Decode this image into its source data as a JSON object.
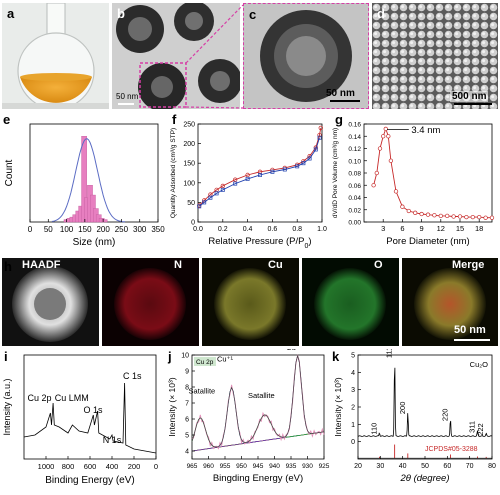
{
  "panels": {
    "a": {
      "label": "a"
    },
    "b": {
      "label": "b",
      "scale": "50 nm"
    },
    "c": {
      "label": "c",
      "scale": "50 nm"
    },
    "d": {
      "label": "d",
      "scale": "500 nm"
    },
    "e": {
      "label": "e"
    },
    "f": {
      "label": "f"
    },
    "g": {
      "label": "g"
    },
    "h": {
      "label": "h",
      "scale": "50 nm",
      "maps": [
        "HAADF",
        "N",
        "Cu",
        "O",
        "Merge"
      ]
    },
    "i": {
      "label": "i"
    },
    "j": {
      "label": "j"
    },
    "k": {
      "label": "k"
    }
  },
  "colors": {
    "accent_magenta": "#d63fa6",
    "bar_pink": "#e77fc0",
    "fit_blue": "#5b6cc4",
    "red_line": "#c62828",
    "blue_line": "#1e3fae",
    "map_N": "#b1121f",
    "map_Cu": "#c5c234",
    "map_O": "#2fa33a"
  },
  "chart_data": [
    {
      "id": "e",
      "type": "bar",
      "xlabel": "Size (nm)",
      "ylabel": "Count",
      "xlim": [
        0,
        350
      ],
      "xticks": [
        0,
        50,
        100,
        150,
        200,
        250,
        300,
        350
      ],
      "x": [
        100,
        108,
        116,
        124,
        132,
        140,
        148,
        156,
        164,
        172,
        180,
        188,
        196,
        204
      ],
      "values": [
        2,
        3,
        4,
        6,
        9,
        13,
        70,
        20,
        30,
        22,
        11,
        6,
        3,
        2
      ],
      "fit": {
        "type": "gaussian",
        "center": 155,
        "sigma": 30,
        "peak": 68
      }
    },
    {
      "id": "f",
      "type": "line",
      "xlabel": "Relative Pressure (P/P",
      "xlabel_sub": "0",
      "xlabel_end": ")",
      "ylabel": "Quantity Adsorbed (cm³/g STP)",
      "xlim": [
        0,
        1.0
      ],
      "xticks": [
        "0.0",
        "0.2",
        "0.4",
        "0.6",
        "0.8",
        "1.0"
      ],
      "ylim": [
        0,
        250
      ],
      "yticks": [
        0,
        50,
        100,
        150,
        200,
        250
      ],
      "series": [
        {
          "x": [
            0.01,
            0.05,
            0.1,
            0.15,
            0.2,
            0.3,
            0.4,
            0.5,
            0.6,
            0.7,
            0.8,
            0.85,
            0.9,
            0.95,
            0.98,
            0.99
          ],
          "values": [
            42,
            55,
            70,
            82,
            92,
            108,
            120,
            128,
            133,
            138,
            146,
            155,
            168,
            190,
            222,
            240
          ]
        },
        {
          "x": [
            0.01,
            0.05,
            0.1,
            0.15,
            0.2,
            0.3,
            0.4,
            0.5,
            0.6,
            0.7,
            0.8,
            0.85,
            0.9,
            0.95,
            0.98
          ],
          "values": [
            40,
            50,
            62,
            73,
            82,
            98,
            110,
            120,
            128,
            134,
            142,
            150,
            162,
            185,
            215
          ]
        }
      ]
    },
    {
      "id": "g",
      "type": "line",
      "xlabel": "Pore Diameter  (nm)",
      "ylabel": "dV/dD Pore Volume (cm³/g nm)",
      "xlim": [
        0,
        20
      ],
      "xticks": [
        3,
        6,
        9,
        12,
        15,
        18
      ],
      "ylim": [
        0,
        0.16
      ],
      "yticks": [
        "0.00",
        "0.02",
        "0.04",
        "0.06",
        "0.08",
        "0.10",
        "0.12",
        "0.14",
        "0.16"
      ],
      "annotation": "3.4 nm",
      "series": [
        {
          "x": [
            1.5,
            2,
            2.5,
            3,
            3.4,
            3.8,
            4.2,
            5,
            6,
            7,
            8,
            9,
            10,
            11,
            12,
            13,
            14,
            15,
            16,
            17,
            18,
            19,
            20
          ],
          "values": [
            0.06,
            0.08,
            0.12,
            0.14,
            0.152,
            0.14,
            0.1,
            0.05,
            0.025,
            0.018,
            0.015,
            0.013,
            0.012,
            0.011,
            0.01,
            0.01,
            0.009,
            0.009,
            0.008,
            0.008,
            0.008,
            0.007,
            0.007
          ]
        }
      ]
    },
    {
      "id": "i",
      "type": "line",
      "xlabel": "Binding Energy (eV)",
      "ylabel": "Intensity (a.u.)",
      "xlim": [
        1200,
        0
      ],
      "xticks": [
        1000,
        800,
        600,
        400,
        200,
        0
      ],
      "annotations": [
        "Cu 2p",
        "Cu LMM",
        "O 1s",
        "N 1s",
        "C 1s"
      ]
    },
    {
      "id": "j",
      "type": "line",
      "xlabel": "Bingding Energy (eV)",
      "ylabel": "Intensity (× 10³)",
      "ylabel_sup": "3",
      "legend": "Cu 2p",
      "xlim": [
        965,
        925
      ],
      "xticks": [
        965,
        960,
        955,
        950,
        945,
        940,
        935,
        930,
        925
      ],
      "ylim": [
        3.5,
        10
      ],
      "yticks": [
        4,
        5,
        6,
        7,
        8,
        9,
        10
      ],
      "annotations": [
        "Satallite",
        "Cu⁺¹",
        "Satallite",
        "Cu⁺¹"
      ]
    },
    {
      "id": "k",
      "type": "bar",
      "xlabel": "2θ (degree)",
      "ylabel": "Intensity (× 10³)",
      "xlim": [
        20,
        80
      ],
      "xticks": [
        20,
        30,
        40,
        50,
        60,
        70,
        80
      ],
      "ylim": [
        -1,
        5
      ],
      "yticks": [
        0,
        1,
        2,
        3,
        4,
        5
      ],
      "legend": "Cu₂O",
      "reference": "JCPDS#05-3288",
      "peaks": [
        {
          "x": 29.6,
          "value": 0.5,
          "label": "110"
        },
        {
          "x": 36.4,
          "value": 4.9,
          "label": "111"
        },
        {
          "x": 42.3,
          "value": 1.7,
          "label": "200"
        },
        {
          "x": 61.4,
          "value": 1.3,
          "label": "220"
        },
        {
          "x": 73.5,
          "value": 0.6,
          "label": "311"
        },
        {
          "x": 77.4,
          "value": 0.45,
          "label": "222"
        }
      ]
    }
  ]
}
